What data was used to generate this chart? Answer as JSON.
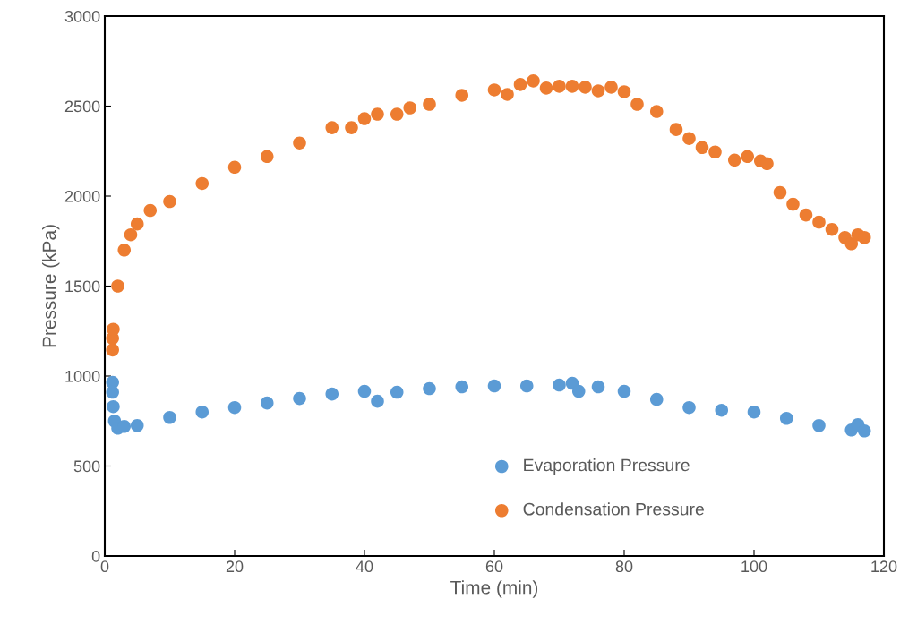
{
  "chart_data": {
    "type": "scatter",
    "xlabel": "Time (min)",
    "ylabel": "Pressure (kPa)",
    "xlim": [
      0,
      120
    ],
    "xticks": [
      0,
      20,
      40,
      60,
      80,
      100,
      120
    ],
    "ylim": [
      0,
      3000
    ],
    "yticks": [
      0,
      500,
      1000,
      1500,
      2000,
      2500,
      3000
    ],
    "grid": false,
    "legend": "bottom right",
    "marker": "circle",
    "series": [
      {
        "name": "Evaporation Pressure",
        "color": "#5b9bd5",
        "x": [
          1.2,
          1.2,
          1.3,
          1.5,
          2,
          3,
          5,
          10,
          15,
          20,
          25,
          30,
          35,
          40,
          42,
          45,
          50,
          55,
          60,
          65,
          70,
          72,
          73,
          76,
          80,
          85,
          90,
          95,
          100,
          105,
          110,
          115,
          116,
          116.5,
          117
        ],
        "values": [
          965,
          910,
          830,
          750,
          710,
          720,
          725,
          770,
          800,
          825,
          850,
          875,
          900,
          915,
          860,
          910,
          930,
          940,
          945,
          945,
          950,
          960,
          915,
          940,
          915,
          870,
          825,
          810,
          800,
          765,
          725,
          700,
          730,
          null,
          695
        ]
      },
      {
        "name": "Condensation Pressure",
        "color": "#ed7d31",
        "x": [
          1.2,
          1.2,
          1.3,
          2,
          3,
          4,
          5,
          7,
          10,
          15,
          20,
          25,
          30,
          35,
          38,
          40,
          42,
          45,
          47,
          50,
          55,
          60,
          62,
          64,
          66,
          68,
          70,
          72,
          74,
          76,
          78,
          80,
          82,
          85,
          88,
          90,
          92,
          94,
          97,
          99,
          101,
          102,
          104,
          106,
          108,
          110,
          112,
          114,
          115,
          116,
          117
        ],
        "values": [
          1145,
          1210,
          1260,
          1500,
          1700,
          1785,
          1845,
          1920,
          1970,
          2070,
          2160,
          2220,
          2295,
          2380,
          2380,
          2430,
          2455,
          2455,
          2490,
          2510,
          2560,
          2590,
          2565,
          2620,
          2640,
          2600,
          2610,
          2610,
          2605,
          2585,
          2605,
          2580,
          2510,
          2470,
          2370,
          2320,
          2270,
          2245,
          2200,
          2220,
          2195,
          2180,
          2020,
          1955,
          1895,
          1855,
          1815,
          1770,
          1735,
          1785,
          1770
        ]
      }
    ]
  }
}
